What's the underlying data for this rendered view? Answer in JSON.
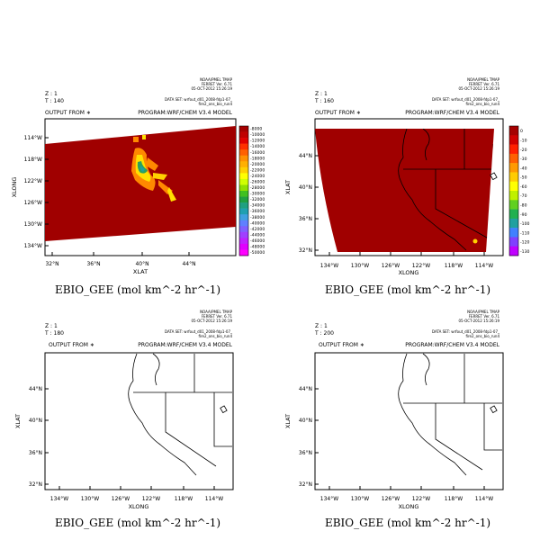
{
  "panels": [
    {
      "z_label": "Z : 1",
      "t_label": "T : 140",
      "output_from": "OUTPUT FROM ∗",
      "program": "PROGRAM:WRF/CHEM V3.4 MODEL",
      "dataset_lines": [
        "DATA SET: wrfout_d01_2008-fdp1-07_",
        "fire2_ons_bio_run4"
      ],
      "meta_lines": [
        "NOAA/PMEL TMAP",
        "FERRET Ver. 6.71",
        "05-OCT-2012 15:26:19"
      ],
      "x_title": "XLAT",
      "y_title": "XLONG",
      "x_ticks": [
        "32°N",
        "36°N",
        "40°N",
        "44°N"
      ],
      "y_ticks": [
        "114°W",
        "118°W",
        "122°W",
        "126°W",
        "130°W",
        "134°W"
      ],
      "colorbar_labels": [
        "-8000",
        "-10000",
        "-12000",
        "-14000",
        "-16000",
        "-18000",
        "-20000",
        "-22000",
        "-24000",
        "-26000",
        "-28000",
        "-30000",
        "-32000",
        "-34000",
        "-36000",
        "-38000",
        "-40000",
        "-42000",
        "-44000",
        "-46000",
        "-48000",
        "-50000"
      ],
      "caption": "EBIO_GEE (mol km^-2 hr^-1)"
    },
    {
      "z_label": "Z : 1",
      "t_label": "T : 160",
      "output_from": "OUTPUT FROM ∗",
      "program": "PROGRAM:WRF/CHEM V3.4 MODEL",
      "dataset_lines": [
        "DATA SET: wrfout_d01_2008-fdp1-07_",
        "fire2_ons_bio_run4"
      ],
      "meta_lines": [
        "NOAA/PMEL TMAP",
        "FERRET Ver. 6.71",
        "05-OCT-2012 15:26:19"
      ],
      "x_title": "XLONG",
      "y_title": "XLAT",
      "x_ticks": [
        "134°W",
        "130°W",
        "126°W",
        "122°W",
        "118°W",
        "114°W"
      ],
      "y_ticks": [
        "44°N",
        "40°N",
        "36°N",
        "32°N"
      ],
      "colorbar_labels": [
        "0",
        "-10",
        "-20",
        "-30",
        "-40",
        "-50",
        "-60",
        "-70",
        "-80",
        "-90",
        "-100",
        "-110",
        "-120",
        "-130"
      ],
      "caption": "EBIO_GEE (mol km^-2 hr^-1)"
    },
    {
      "z_label": "Z : 1",
      "t_label": "T : 180",
      "output_from": "OUTPUT FROM ∗",
      "program": "PROGRAM:WRF/CHEM V3.4 MODEL",
      "dataset_lines": [
        "DATA SET: wrfout_d01_2008-fdp1-07_",
        "fire2_ons_bio_run4"
      ],
      "meta_lines": [
        "NOAA/PMEL TMAP",
        "FERRET Ver. 6.71",
        "05-OCT-2012 15:26:19"
      ],
      "x_title": "XLONG",
      "y_title": "XLAT",
      "x_ticks": [
        "134°W",
        "130°W",
        "126°W",
        "122°W",
        "118°W",
        "114°W"
      ],
      "y_ticks": [
        "44°N",
        "40°N",
        "36°N",
        "32°N"
      ],
      "caption": "EBIO_GEE (mol km^-2 hr^-1)"
    },
    {
      "z_label": "Z : 1",
      "t_label": "T : 200",
      "output_from": "OUTPUT FROM ∗",
      "program": "PROGRAM:WRF/CHEM V3.4 MODEL",
      "dataset_lines": [
        "DATA SET: wrfout_d01_2008-fdp1-07_",
        "fire2_ons_bio_run4"
      ],
      "meta_lines": [
        "NOAA/PMEL TMAP",
        "FERRET Ver. 6.71",
        "05-OCT-2012 15:26:19"
      ],
      "x_title": "XLONG",
      "y_title": "XLAT",
      "x_ticks": [
        "134°W",
        "130°W",
        "126°W",
        "122°W",
        "118°W",
        "114°W"
      ],
      "y_ticks": [
        "44°N",
        "40°N",
        "36°N",
        "32°N"
      ],
      "caption": "EBIO_GEE (mol km^-2 hr^-1)"
    }
  ],
  "colors": {
    "field": "#a00000",
    "coast": "#000000",
    "plume_yellow": "#ffe000",
    "plume_orange": "#ff8800",
    "plume_green": "#2aa060",
    "plume_teal": "#1fa0a0"
  },
  "colorbar_colors_140": [
    "#a50000",
    "#c00000",
    "#e00000",
    "#ff3000",
    "#ff6000",
    "#ff9000",
    "#ffb000",
    "#ffd000",
    "#ffff00",
    "#d0ff00",
    "#90e000",
    "#40c020",
    "#20a040",
    "#20a080",
    "#20a0b0",
    "#40a0e0",
    "#6080ff",
    "#8060ff",
    "#a040ff",
    "#c020ff",
    "#e000ff",
    "#ff00ff"
  ],
  "colorbar_colors_160": [
    "#a50000",
    "#d00000",
    "#ff2000",
    "#ff6000",
    "#ff9a00",
    "#ffcc00",
    "#ffff00",
    "#c0f000",
    "#60d020",
    "#20b050",
    "#20a0a0",
    "#4080ff",
    "#8040ff",
    "#c000ff"
  ]
}
